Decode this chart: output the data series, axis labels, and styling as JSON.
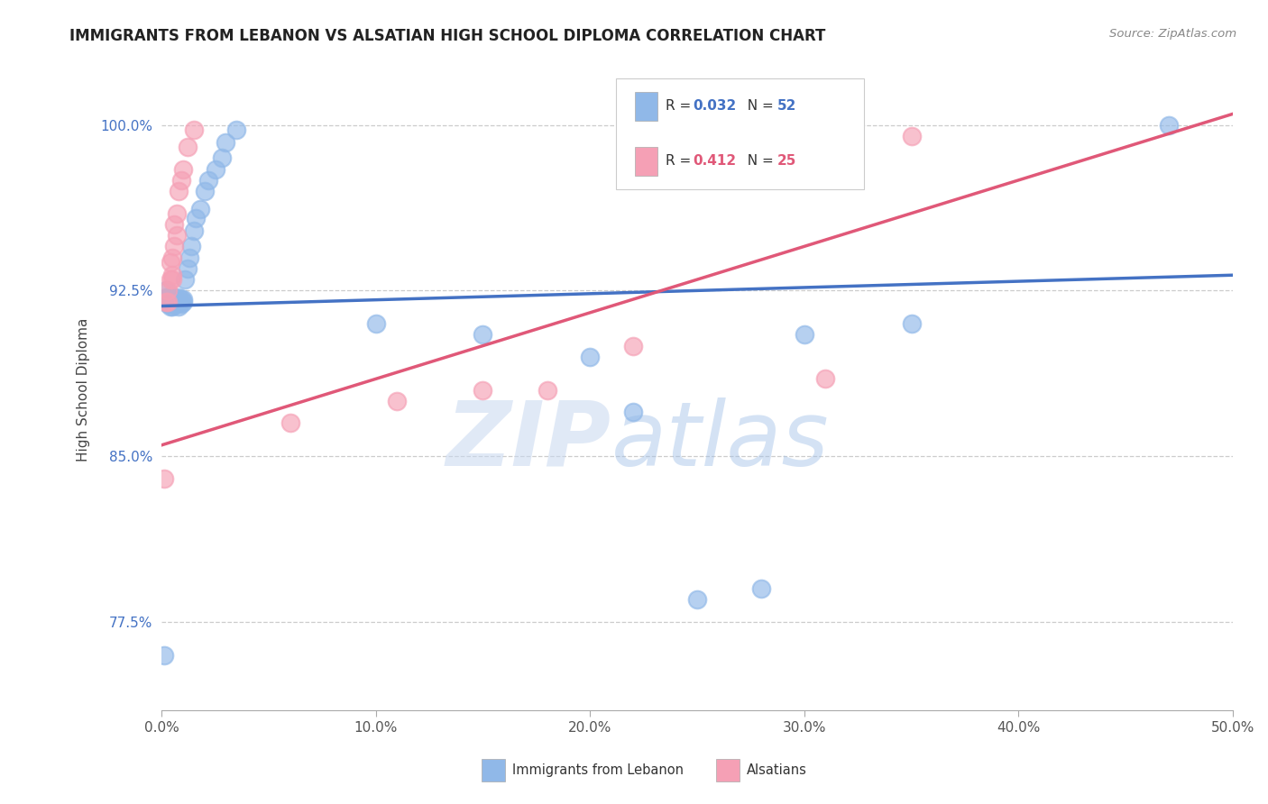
{
  "title": "IMMIGRANTS FROM LEBANON VS ALSATIAN HIGH SCHOOL DIPLOMA CORRELATION CHART",
  "source": "Source: ZipAtlas.com",
  "ylabel": "High School Diploma",
  "xlim": [
    0.0,
    0.5
  ],
  "ylim": [
    0.735,
    1.025
  ],
  "xtick_labels": [
    "0.0%",
    "10.0%",
    "20.0%",
    "30.0%",
    "40.0%",
    "50.0%"
  ],
  "xtick_vals": [
    0.0,
    0.1,
    0.2,
    0.3,
    0.4,
    0.5
  ],
  "ytick_labels": [
    "77.5%",
    "85.0%",
    "92.5%",
    "100.0%"
  ],
  "ytick_vals": [
    0.775,
    0.85,
    0.925,
    1.0
  ],
  "blue_color": "#90b8e8",
  "pink_color": "#f5a0b5",
  "blue_line_color": "#4472c4",
  "pink_line_color": "#e05878",
  "blue_line_y0": 0.918,
  "blue_line_y1": 0.932,
  "pink_line_y0": 0.855,
  "pink_line_y1": 1.005,
  "blue_scatter_x": [
    0.001,
    0.002,
    0.002,
    0.003,
    0.003,
    0.003,
    0.003,
    0.004,
    0.004,
    0.004,
    0.004,
    0.005,
    0.005,
    0.005,
    0.005,
    0.005,
    0.006,
    0.006,
    0.006,
    0.006,
    0.007,
    0.007,
    0.007,
    0.008,
    0.008,
    0.008,
    0.009,
    0.009,
    0.01,
    0.01,
    0.011,
    0.012,
    0.013,
    0.014,
    0.015,
    0.016,
    0.018,
    0.02,
    0.022,
    0.025,
    0.028,
    0.03,
    0.035,
    0.1,
    0.15,
    0.2,
    0.22,
    0.25,
    0.28,
    0.3,
    0.35,
    0.47
  ],
  "blue_scatter_y": [
    0.76,
    0.925,
    0.922,
    0.921,
    0.92,
    0.919,
    0.922,
    0.92,
    0.921,
    0.919,
    0.918,
    0.92,
    0.921,
    0.919,
    0.922,
    0.918,
    0.92,
    0.921,
    0.919,
    0.922,
    0.92,
    0.921,
    0.919,
    0.92,
    0.922,
    0.918,
    0.921,
    0.919,
    0.92,
    0.921,
    0.93,
    0.935,
    0.94,
    0.945,
    0.952,
    0.958,
    0.962,
    0.97,
    0.975,
    0.98,
    0.985,
    0.992,
    0.998,
    0.91,
    0.905,
    0.895,
    0.87,
    0.785,
    0.79,
    0.905,
    0.91,
    1.0
  ],
  "pink_scatter_x": [
    0.001,
    0.002,
    0.003,
    0.003,
    0.004,
    0.004,
    0.005,
    0.005,
    0.005,
    0.006,
    0.006,
    0.007,
    0.007,
    0.008,
    0.009,
    0.01,
    0.012,
    0.015,
    0.06,
    0.11,
    0.15,
    0.18,
    0.22,
    0.31,
    0.35
  ],
  "pink_scatter_y": [
    0.84,
    0.92,
    0.92,
    0.925,
    0.938,
    0.93,
    0.932,
    0.94,
    0.93,
    0.945,
    0.955,
    0.96,
    0.95,
    0.97,
    0.975,
    0.98,
    0.99,
    0.998,
    0.865,
    0.875,
    0.88,
    0.88,
    0.9,
    0.885,
    0.995
  ],
  "watermark_zip": "ZIP",
  "watermark_atlas": "atlas",
  "background_color": "#ffffff",
  "grid_color": "#cccccc",
  "legend_R_blue": "0.032",
  "legend_N_blue": "52",
  "legend_R_pink": "0.412",
  "legend_N_pink": "25"
}
